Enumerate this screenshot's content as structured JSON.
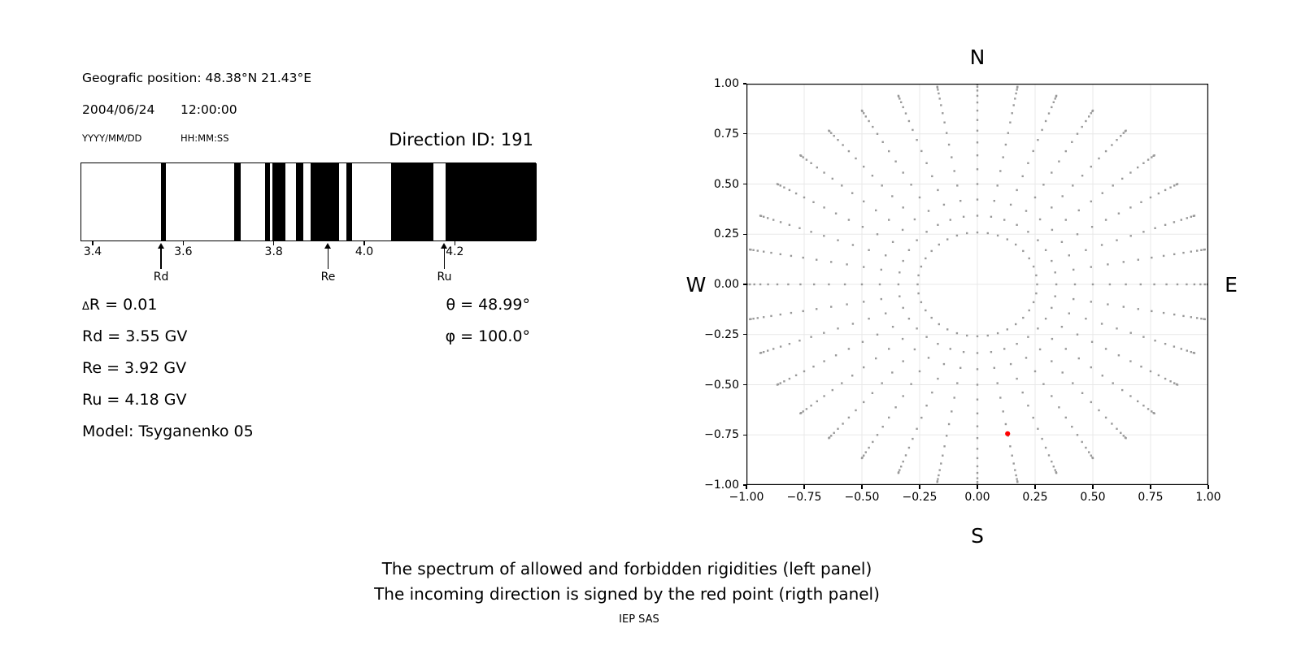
{
  "header": {
    "geo": "Geografic position: 48.38°N 21.43°E",
    "date": "2004/06/24",
    "time": "12:00:00",
    "date_hint": "YYYY/MM/DD",
    "time_hint": "HH:MM:SS",
    "direction_id": "Direction ID: 191"
  },
  "info": {
    "delta_prefix": "Δ",
    "delta_r": "R = 0.01",
    "rd": "Rd = 3.55 GV",
    "re": "Re = 3.92 GV",
    "ru": "Ru = 4.18 GV",
    "model": "Model: Tsyganenko 05",
    "theta": "θ = 48.99°",
    "phi": "φ = 100.0°"
  },
  "caption": {
    "line1": "The spectrum of allowed and forbidden rigidities (left panel)",
    "line2": "The incoming direction is signed by the red point (rigth panel)",
    "credit": "IEP SAS"
  },
  "chart_data": [
    {
      "id": "rigidity_spectrum",
      "type": "bar",
      "title": "",
      "xlabel": "",
      "xlim": [
        3.373,
        4.379
      ],
      "xticks": [
        3.4,
        3.6,
        3.8,
        4.0,
        4.2
      ],
      "xtick_labels": [
        "3.4",
        "3.6",
        "3.8",
        "4.0",
        "4.2"
      ],
      "allowed_bands_GV": [
        [
          3.549,
          3.56
        ],
        [
          3.711,
          3.726
        ],
        [
          3.779,
          3.79
        ],
        [
          3.795,
          3.824
        ],
        [
          3.848,
          3.863
        ],
        [
          3.879,
          3.943
        ],
        [
          3.959,
          3.971
        ],
        [
          4.057,
          4.15
        ],
        [
          4.178,
          4.379
        ]
      ],
      "cutoff_markers": [
        {
          "label": "Rd",
          "value_GV": 3.551
        },
        {
          "label": "Re",
          "value_GV": 3.92
        },
        {
          "label": "Ru",
          "value_GV": 4.177
        }
      ],
      "bar_color": "#000000",
      "background": "#ffffff"
    },
    {
      "id": "incoming_direction_map",
      "type": "scatter",
      "title": "",
      "xlim": [
        -1,
        1
      ],
      "ylim": [
        -1,
        1
      ],
      "xticks": [
        -1,
        -0.75,
        -0.5,
        -0.25,
        0,
        0.25,
        0.5,
        0.75,
        1
      ],
      "xtick_labels": [
        "−1.00",
        "−0.75",
        "−0.50",
        "−0.25",
        "0.00",
        "0.25",
        "0.50",
        "0.75",
        "1.00"
      ],
      "yticks": [
        1,
        0.75,
        0.5,
        0.25,
        0,
        -0.25,
        -0.5,
        -0.75,
        -1
      ],
      "ytick_labels": [
        "1.00",
        "0.75",
        "0.50",
        "0.25",
        "0.00",
        "−0.25",
        "−0.50",
        "−0.75",
        "−1.00"
      ],
      "compass": {
        "top": "N",
        "bottom": "S",
        "left": "W",
        "right": "E"
      },
      "grid": true,
      "grid_color": "#e8e8e8",
      "dot_grid": {
        "azimuth_deg": [
          0,
          10,
          20,
          30,
          40,
          50,
          60,
          70,
          80,
          90,
          100,
          110,
          120,
          130,
          140,
          150,
          160,
          170,
          180,
          190,
          200,
          210,
          220,
          230,
          240,
          250,
          260,
          270,
          280,
          290,
          300,
          310,
          320,
          330,
          340,
          350
        ],
        "zenith_deg": [
          15,
          20,
          25,
          30,
          35,
          40,
          45,
          50,
          55,
          60,
          65,
          70,
          75,
          80,
          85,
          90
        ],
        "radius_rule": "sin(zenith)",
        "marker": "square",
        "dot_color": "#999999"
      },
      "red_point": {
        "x": 0.131,
        "y": -0.744,
        "color": "#ff0000",
        "marker": "circle"
      }
    }
  ]
}
